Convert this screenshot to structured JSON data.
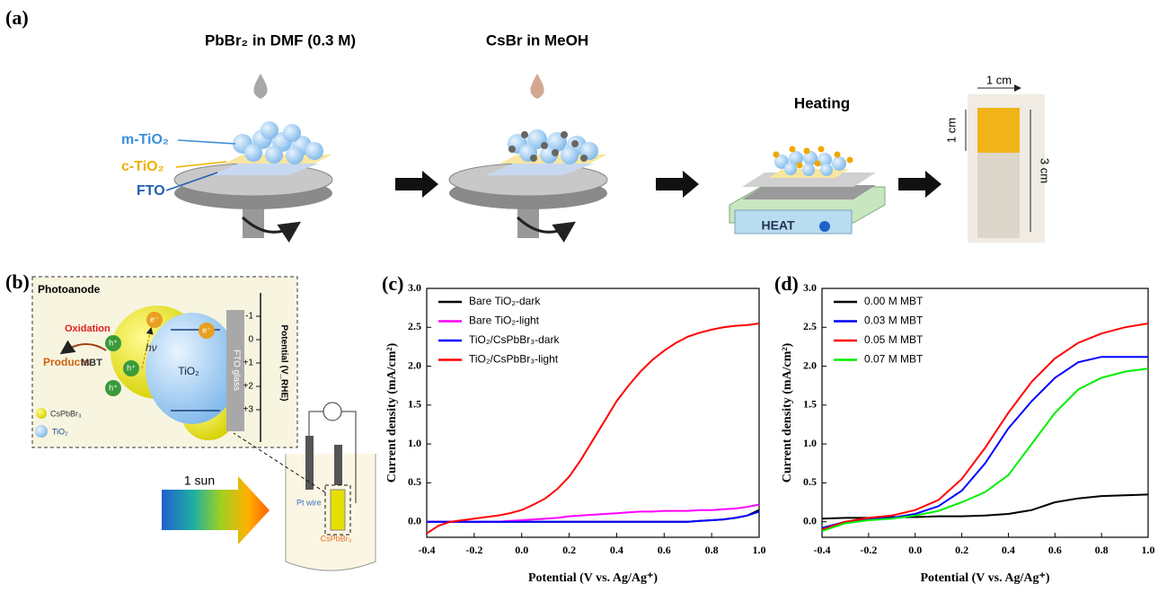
{
  "diagram": {
    "panel_a": "(a)",
    "step1_title": "PbBr₂ in DMF (0.3 M)",
    "step2_title": "CsBr in MeOH",
    "layer_m": "m-TiO₂",
    "layer_c": "c-TiO₂",
    "layer_fto": "FTO",
    "heating": "Heating",
    "heat": "HEAT",
    "width": "1 cm",
    "height_top": "1 cm",
    "height_total": "3 cm",
    "panel_b": "(b)",
    "photoanode": "Photoanode",
    "oxidation": "Oxidation",
    "products": "Products",
    "mbt": "MBT",
    "hv": "hν",
    "electron": "e⁻",
    "hole": "h⁺",
    "tio2": "TiO₂",
    "fto_glass": "FTO glass",
    "potential_ticks": [
      "-1",
      "0",
      "+1",
      "+2",
      "+3"
    ],
    "potential_label": "Potential (V_RHE)",
    "legend_cspbbr3": "CsPbBr₃",
    "legend_tio2": "TiO₂",
    "sun": "1 sun",
    "pt_wire": "Pt wire",
    "cspbbr3_electrode": "CsPbBr₃"
  },
  "chart_data": [
    {
      "type": "line",
      "panel_label": "(c)",
      "x_label": "Potential (V vs. Ag/Ag⁺)",
      "y_label": "Current density (mA/cm²)",
      "x": [
        -0.4,
        -0.35,
        -0.3,
        -0.25,
        -0.2,
        -0.15,
        -0.1,
        -0.05,
        0,
        0.05,
        0.1,
        0.15,
        0.2,
        0.25,
        0.3,
        0.35,
        0.4,
        0.45,
        0.5,
        0.55,
        0.6,
        0.65,
        0.7,
        0.75,
        0.8,
        0.85,
        0.9,
        0.95,
        1.0
      ],
      "series": [
        {
          "name": "Bare TiO₂-dark",
          "color": "#000000",
          "values": [
            0,
            0,
            0,
            0,
            0,
            0,
            0,
            0,
            0,
            0,
            0,
            0,
            0,
            0,
            0,
            0,
            0,
            0,
            0,
            0,
            0,
            0,
            0,
            0.01,
            0.02,
            0.03,
            0.05,
            0.08,
            0.15
          ]
        },
        {
          "name": "Bare TiO₂-light",
          "color": "#ff00ff",
          "values": [
            0,
            0,
            0,
            0,
            0,
            0,
            0,
            0.01,
            0.02,
            0.03,
            0.04,
            0.05,
            0.07,
            0.08,
            0.09,
            0.1,
            0.11,
            0.12,
            0.13,
            0.13,
            0.14,
            0.14,
            0.14,
            0.15,
            0.15,
            0.16,
            0.17,
            0.19,
            0.22
          ]
        },
        {
          "name": "TiO₂/CsPbBr₃-dark",
          "color": "#0000ff",
          "values": [
            0,
            0,
            0,
            0,
            0,
            0,
            0,
            0,
            0,
            0,
            0,
            0,
            0,
            0,
            0,
            0,
            0,
            0,
            0,
            0,
            0,
            0,
            0,
            0.01,
            0.02,
            0.03,
            0.05,
            0.08,
            0.13
          ]
        },
        {
          "name": "TiO₂/CsPbBr₃-light",
          "color": "#ff0000",
          "values": [
            -0.15,
            -0.05,
            0,
            0.02,
            0.04,
            0.06,
            0.08,
            0.11,
            0.15,
            0.22,
            0.3,
            0.42,
            0.58,
            0.8,
            1.05,
            1.3,
            1.55,
            1.75,
            1.93,
            2.08,
            2.2,
            2.3,
            2.38,
            2.43,
            2.47,
            2.5,
            2.52,
            2.53,
            2.55
          ]
        }
      ],
      "xlim": [
        -0.4,
        1.0
      ],
      "ylim": [
        -0.2,
        3.0
      ],
      "xticks": [
        -0.4,
        -0.2,
        {
          "value": 0,
          "label": "0.0"
        },
        0.2,
        0.4,
        0.6,
        0.8,
        {
          "value": 1,
          "label": "1.0"
        }
      ],
      "yticks": [
        {
          "value": 0,
          "label": "0.0"
        },
        0.5,
        {
          "value": 1,
          "label": "1.0"
        },
        1.5,
        {
          "value": 2,
          "label": "2.0"
        },
        2.5,
        {
          "value": 3,
          "label": "3.0"
        }
      ]
    },
    {
      "type": "line",
      "panel_label": "(d)",
      "x_label": "Potential (V vs. Ag/Ag⁺)",
      "y_label": "Current density (mA/cm²)",
      "x": [
        -0.4,
        -0.3,
        -0.2,
        -0.1,
        0,
        0.1,
        0.2,
        0.3,
        0.4,
        0.5,
        0.6,
        0.7,
        0.8,
        0.9,
        1.0
      ],
      "series": [
        {
          "name": "0.00 M MBT",
          "color": "#000000",
          "values": [
            0.04,
            0.05,
            0.05,
            0.06,
            0.06,
            0.07,
            0.07,
            0.08,
            0.1,
            0.15,
            0.25,
            0.3,
            0.33,
            0.34,
            0.35
          ]
        },
        {
          "name": "0.03 M MBT",
          "color": "#0000ff",
          "values": [
            -0.08,
            0,
            0.03,
            0.05,
            0.1,
            0.2,
            0.4,
            0.75,
            1.2,
            1.55,
            1.85,
            2.05,
            2.12,
            2.12,
            2.12
          ]
        },
        {
          "name": "0.05 M MBT",
          "color": "#ff0000",
          "values": [
            -0.1,
            0,
            0.05,
            0.08,
            0.15,
            0.28,
            0.55,
            0.95,
            1.4,
            1.8,
            2.1,
            2.3,
            2.42,
            2.5,
            2.55
          ]
        },
        {
          "name": "0.07 M MBT",
          "color": "#00ee00",
          "values": [
            -0.12,
            -0.02,
            0.02,
            0.04,
            0.08,
            0.14,
            0.25,
            0.38,
            0.6,
            1.0,
            1.4,
            1.7,
            1.85,
            1.93,
            1.97
          ]
        }
      ],
      "xlim": [
        -0.4,
        1.0
      ],
      "ylim": [
        -0.2,
        3.0
      ],
      "xticks": [
        -0.4,
        -0.2,
        {
          "value": 0,
          "label": "0.0"
        },
        0.2,
        0.4,
        0.6,
        0.8,
        {
          "value": 1,
          "label": "1.0"
        }
      ],
      "yticks": [
        {
          "value": 0,
          "label": "0.0"
        },
        0.5,
        {
          "value": 1,
          "label": "1.0"
        },
        1.5,
        {
          "value": 2,
          "label": "2.0"
        },
        2.5,
        {
          "value": 3,
          "label": "3.0"
        }
      ]
    }
  ]
}
